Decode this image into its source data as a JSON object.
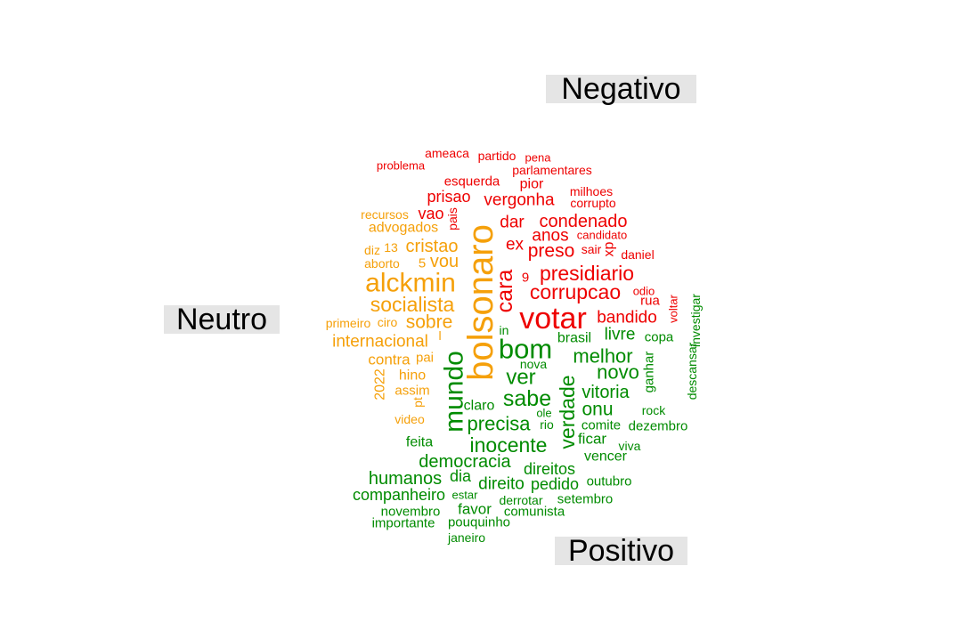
{
  "colors": {
    "negativo": "#ee0000",
    "neutro": "#f5a00a",
    "positivo": "#008b00",
    "label_bg": "#e5e5e5"
  },
  "labels": {
    "negativo": "Negativo",
    "neutro": "Neutro",
    "positivo": "Positivo"
  },
  "words": [
    {
      "t": "ameaca",
      "g": "negativo"
    },
    {
      "t": "partido",
      "g": "negativo"
    },
    {
      "t": "pena",
      "g": "negativo"
    },
    {
      "t": "problema",
      "g": "negativo"
    },
    {
      "t": "parlamentares",
      "g": "negativo"
    },
    {
      "t": "esquerda",
      "g": "negativo"
    },
    {
      "t": "pior",
      "g": "negativo"
    },
    {
      "t": "milhoes",
      "g": "negativo"
    },
    {
      "t": "prisao",
      "g": "negativo"
    },
    {
      "t": "vergonha",
      "g": "negativo"
    },
    {
      "t": "corrupto",
      "g": "negativo"
    },
    {
      "t": "vao",
      "g": "negativo"
    },
    {
      "t": "pais",
      "g": "negativo"
    },
    {
      "t": "dar",
      "g": "negativo"
    },
    {
      "t": "condenado",
      "g": "negativo"
    },
    {
      "t": "anos",
      "g": "negativo"
    },
    {
      "t": "candidato",
      "g": "negativo"
    },
    {
      "t": "ex",
      "g": "negativo"
    },
    {
      "t": "xp",
      "g": "negativo"
    },
    {
      "t": "sair",
      "g": "negativo"
    },
    {
      "t": "preso",
      "g": "negativo"
    },
    {
      "t": "daniel",
      "g": "negativo"
    },
    {
      "t": "presidiario",
      "g": "negativo"
    },
    {
      "t": "9",
      "g": "negativo"
    },
    {
      "t": "cara",
      "g": "negativo"
    },
    {
      "t": "corrupcao",
      "g": "negativo"
    },
    {
      "t": "odio",
      "g": "negativo"
    },
    {
      "t": "rua",
      "g": "negativo"
    },
    {
      "t": "voltar",
      "g": "negativo"
    },
    {
      "t": "votar",
      "g": "negativo"
    },
    {
      "t": "bandido",
      "g": "negativo"
    },
    {
      "t": "recursos",
      "g": "neutro"
    },
    {
      "t": "advogados",
      "g": "neutro"
    },
    {
      "t": "diz",
      "g": "neutro"
    },
    {
      "t": "13",
      "g": "neutro"
    },
    {
      "t": "cristao",
      "g": "neutro"
    },
    {
      "t": "aborto",
      "g": "neutro"
    },
    {
      "t": "5",
      "g": "neutro"
    },
    {
      "t": "vou",
      "g": "neutro"
    },
    {
      "t": "alckmin",
      "g": "neutro"
    },
    {
      "t": "socialista",
      "g": "neutro"
    },
    {
      "t": "primeiro",
      "g": "neutro"
    },
    {
      "t": "ciro",
      "g": "neutro"
    },
    {
      "t": "sobre",
      "g": "neutro"
    },
    {
      "t": "l",
      "g": "neutro"
    },
    {
      "t": "internacional",
      "g": "neutro"
    },
    {
      "t": "contra",
      "g": "neutro"
    },
    {
      "t": "pai",
      "g": "neutro"
    },
    {
      "t": "hino",
      "g": "neutro"
    },
    {
      "t": "2022",
      "g": "neutro"
    },
    {
      "t": "assim",
      "g": "neutro"
    },
    {
      "t": "pt",
      "g": "neutro"
    },
    {
      "t": "video",
      "g": "neutro"
    },
    {
      "t": "bolsonaro",
      "g": "neutro"
    },
    {
      "t": "in",
      "g": "positivo"
    },
    {
      "t": "brasil",
      "g": "positivo"
    },
    {
      "t": "livre",
      "g": "positivo"
    },
    {
      "t": "copa",
      "g": "positivo"
    },
    {
      "t": "investigar",
      "g": "positivo"
    },
    {
      "t": "bom",
      "g": "positivo"
    },
    {
      "t": "melhor",
      "g": "positivo"
    },
    {
      "t": "ganhar",
      "g": "positivo"
    },
    {
      "t": "nova",
      "g": "positivo"
    },
    {
      "t": "novo",
      "g": "positivo"
    },
    {
      "t": "ver",
      "g": "positivo"
    },
    {
      "t": "descansar",
      "g": "positivo"
    },
    {
      "t": "mundo",
      "g": "positivo"
    },
    {
      "t": "vitoria",
      "g": "positivo"
    },
    {
      "t": "sabe",
      "g": "positivo"
    },
    {
      "t": "verdade",
      "g": "positivo"
    },
    {
      "t": "onu",
      "g": "positivo"
    },
    {
      "t": "rock",
      "g": "positivo"
    },
    {
      "t": "claro",
      "g": "positivo"
    },
    {
      "t": "ole",
      "g": "positivo"
    },
    {
      "t": "precisa",
      "g": "positivo"
    },
    {
      "t": "rio",
      "g": "positivo"
    },
    {
      "t": "comite",
      "g": "positivo"
    },
    {
      "t": "dezembro",
      "g": "positivo"
    },
    {
      "t": "feita",
      "g": "positivo"
    },
    {
      "t": "ficar",
      "g": "positivo"
    },
    {
      "t": "inocente",
      "g": "positivo"
    },
    {
      "t": "viva",
      "g": "positivo"
    },
    {
      "t": "vencer",
      "g": "positivo"
    },
    {
      "t": "democracia",
      "g": "positivo"
    },
    {
      "t": "direitos",
      "g": "positivo"
    },
    {
      "t": "humanos",
      "g": "positivo"
    },
    {
      "t": "dia",
      "g": "positivo"
    },
    {
      "t": "outubro",
      "g": "positivo"
    },
    {
      "t": "direito",
      "g": "positivo"
    },
    {
      "t": "pedido",
      "g": "positivo"
    },
    {
      "t": "companheiro",
      "g": "positivo"
    },
    {
      "t": "estar",
      "g": "positivo"
    },
    {
      "t": "setembro",
      "g": "positivo"
    },
    {
      "t": "derrotar",
      "g": "positivo"
    },
    {
      "t": "favor",
      "g": "positivo"
    },
    {
      "t": "comunista",
      "g": "positivo"
    },
    {
      "t": "novembro",
      "g": "positivo"
    },
    {
      "t": "importante",
      "g": "positivo"
    },
    {
      "t": "pouquinho",
      "g": "positivo"
    },
    {
      "t": "janeiro",
      "g": "positivo"
    }
  ]
}
